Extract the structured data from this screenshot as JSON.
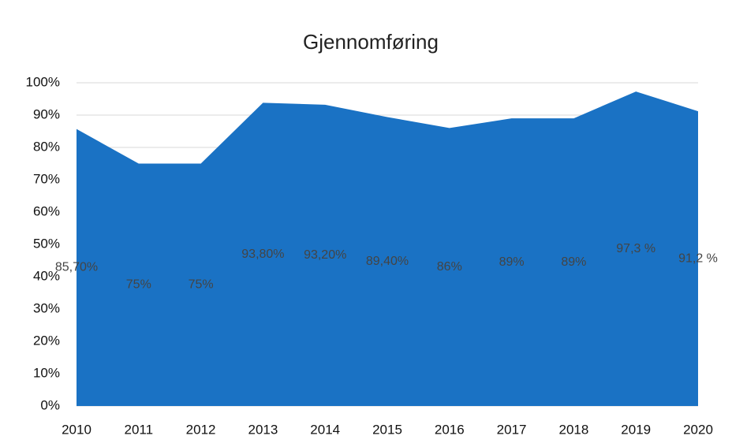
{
  "chart_data": {
    "type": "area",
    "title": "Gjennomføring",
    "categories": [
      "2010",
      "2011",
      "2012",
      "2013",
      "2014",
      "2015",
      "2016",
      "2017",
      "2018",
      "2019",
      "2020"
    ],
    "values": [
      85.7,
      75,
      75,
      93.8,
      93.2,
      89.4,
      86,
      89,
      89,
      97.3,
      91.2
    ],
    "value_labels": [
      "85,70%",
      "75%",
      "75%",
      "93,80%",
      "93,20%",
      "89,40%",
      "86%",
      "89%",
      "89%",
      "97,3 %",
      "91,2 %"
    ],
    "color": "#1a72c4",
    "ylim": [
      0,
      100
    ],
    "yticks": [
      {
        "value": 0,
        "label": "0%"
      },
      {
        "value": 10,
        "label": "10%"
      },
      {
        "value": 20,
        "label": "20%"
      },
      {
        "value": 30,
        "label": "30%"
      },
      {
        "value": 40,
        "label": "40%"
      },
      {
        "value": 50,
        "label": "50%"
      },
      {
        "value": 60,
        "label": "60%"
      },
      {
        "value": 70,
        "label": "70%"
      },
      {
        "value": 80,
        "label": "80%"
      },
      {
        "value": 90,
        "label": "90%"
      },
      {
        "value": 100,
        "label": "100%"
      }
    ],
    "grid": true
  }
}
